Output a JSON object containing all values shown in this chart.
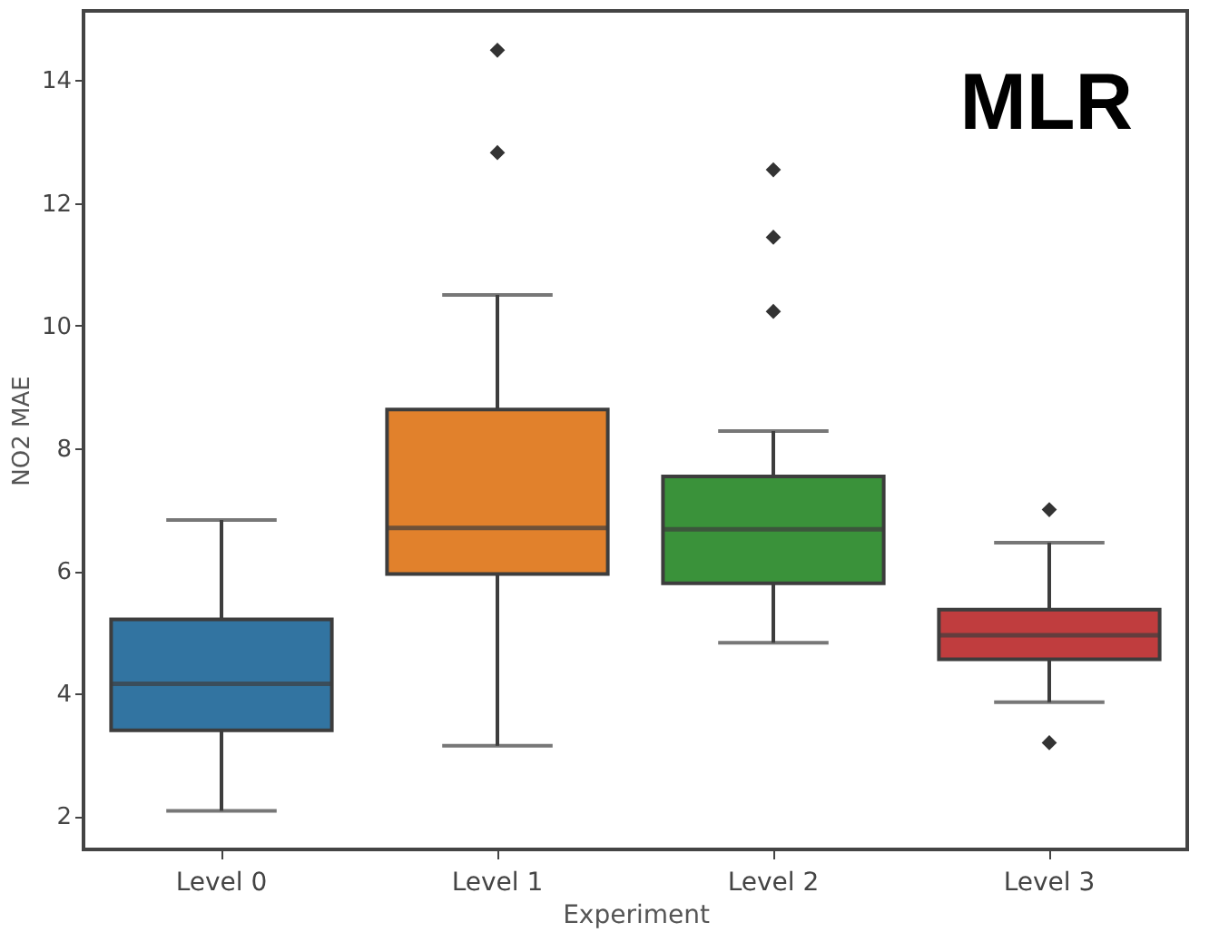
{
  "chart_data": {
    "type": "box",
    "xlabel": "Experiment",
    "ylabel": "NO2 MAE",
    "annotations": [
      "MLR"
    ],
    "categories": [
      "Level 0",
      "Level 1",
      "Level 2",
      "Level 3"
    ],
    "colors": [
      "#3274a1",
      "#e1812c",
      "#3a923a",
      "#c03d3e"
    ],
    "boxes": [
      {
        "low": 2.09,
        "q1": 3.4,
        "median": 4.16,
        "q3": 5.21,
        "high": 6.83
      },
      {
        "low": 3.15,
        "q1": 5.95,
        "median": 6.7,
        "q3": 8.63,
        "high": 10.5,
        "outliers": [
          12.82,
          14.49
        ]
      },
      {
        "low": 4.83,
        "q1": 5.8,
        "median": 6.68,
        "q3": 7.54,
        "high": 8.28,
        "outliers": [
          10.23,
          11.44,
          12.54
        ]
      },
      {
        "low": 3.86,
        "q1": 4.56,
        "median": 4.95,
        "q3": 5.37,
        "high": 6.46,
        "outliers": [
          3.2,
          7.0
        ]
      }
    ],
    "ylim": [
      1.46,
      15.13
    ],
    "yticks": [
      2,
      4,
      6,
      8,
      10,
      12,
      14
    ],
    "grid": false
  }
}
